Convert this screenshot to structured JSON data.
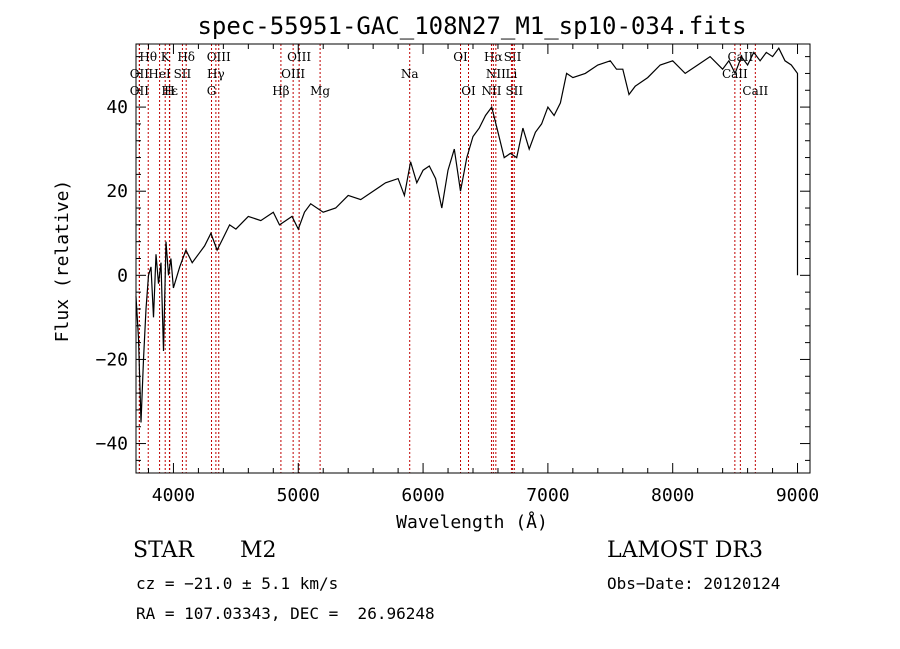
{
  "chart_data": {
    "type": "line",
    "title": "spec-55951-GAC_108N27_M1_sp10-034.fits",
    "xlabel": "Wavelength (Å)",
    "ylabel": "Flux (relative)",
    "xlim": [
      3700,
      9100
    ],
    "ylim": [
      -47,
      55
    ],
    "x_ticks": [
      4000,
      5000,
      6000,
      7000,
      8000,
      9000
    ],
    "y_ticks": [
      -40,
      -20,
      0,
      20,
      40
    ],
    "series": [
      {
        "name": "flux",
        "x": [
          3700,
          3720,
          3740,
          3760,
          3780,
          3800,
          3820,
          3840,
          3860,
          3880,
          3900,
          3920,
          3940,
          3960,
          3980,
          4000,
          4050,
          4100,
          4150,
          4200,
          4250,
          4300,
          4350,
          4400,
          4450,
          4500,
          4600,
          4700,
          4800,
          4850,
          4900,
          4950,
          5000,
          5050,
          5100,
          5200,
          5300,
          5400,
          5500,
          5600,
          5700,
          5800,
          5850,
          5900,
          5950,
          6000,
          6050,
          6100,
          6150,
          6200,
          6250,
          6300,
          6350,
          6400,
          6450,
          6500,
          6550,
          6600,
          6650,
          6700,
          6750,
          6800,
          6850,
          6900,
          6950,
          7000,
          7050,
          7100,
          7150,
          7200,
          7300,
          7400,
          7500,
          7550,
          7600,
          7650,
          7700,
          7800,
          7900,
          8000,
          8100,
          8200,
          8300,
          8400,
          8450,
          8500,
          8550,
          8600,
          8650,
          8700,
          8750,
          8800,
          8850,
          8900,
          8950,
          9000,
          9000
        ],
        "y": [
          -5,
          -15,
          -35,
          -20,
          -8,
          0,
          2,
          -10,
          5,
          -2,
          3,
          -18,
          8,
          0,
          4,
          -3,
          2,
          6,
          3,
          5,
          7,
          10,
          6,
          9,
          12,
          11,
          14,
          13,
          15,
          12,
          13,
          14,
          11,
          15,
          17,
          15,
          16,
          19,
          18,
          20,
          22,
          23,
          19,
          27,
          22,
          25,
          26,
          23,
          16,
          25,
          30,
          20,
          28,
          33,
          35,
          38,
          40,
          34,
          28,
          29,
          28,
          35,
          30,
          34,
          36,
          40,
          38,
          41,
          48,
          47,
          48,
          50,
          51,
          49,
          49,
          43,
          45,
          47,
          50,
          51,
          48,
          50,
          52,
          49,
          51,
          48,
          52,
          50,
          53,
          51,
          53,
          52,
          54,
          51,
          50,
          48,
          0
        ]
      }
    ],
    "line_markers": [
      {
        "name": "Hθ",
        "x": 3798,
        "row": 0
      },
      {
        "name": "K",
        "x": 3934,
        "row": 0
      },
      {
        "name": "Hδ",
        "x": 4102,
        "row": 0
      },
      {
        "name": "OIII",
        "x": 4363,
        "row": 0
      },
      {
        "name": "OIII",
        "x": 5007,
        "row": 0
      },
      {
        "name": "OI",
        "x": 6300,
        "row": 0
      },
      {
        "name": "Hα",
        "x": 6563,
        "row": 0
      },
      {
        "name": "SII",
        "x": 6717,
        "row": 0
      },
      {
        "name": "CaII",
        "x": 8542,
        "row": 0
      },
      {
        "name": "OII",
        "x": 3727,
        "row": 1
      },
      {
        "name": "HeI",
        "x": 3889,
        "row": 1
      },
      {
        "name": "SII",
        "x": 4072,
        "row": 1
      },
      {
        "name": "Hγ",
        "x": 4340,
        "row": 1
      },
      {
        "name": "OIII",
        "x": 4959,
        "row": 1
      },
      {
        "name": "Na",
        "x": 5893,
        "row": 1
      },
      {
        "name": "NII",
        "x": 6583,
        "row": 1
      },
      {
        "name": "Li",
        "x": 6708,
        "row": 1
      },
      {
        "name": "CaII",
        "x": 8498,
        "row": 1
      },
      {
        "name": "OII",
        "x": 3727,
        "row": 2
      },
      {
        "name": "Hε",
        "x": 3970,
        "row": 2
      },
      {
        "name": "H",
        "x": 3968,
        "row": 2
      },
      {
        "name": "G",
        "x": 4305,
        "row": 2
      },
      {
        "name": "Hβ",
        "x": 4861,
        "row": 2
      },
      {
        "name": "Mg",
        "x": 5175,
        "row": 2
      },
      {
        "name": "OI",
        "x": 6364,
        "row": 2
      },
      {
        "name": "NII",
        "x": 6548,
        "row": 2
      },
      {
        "name": "SII",
        "x": 6731,
        "row": 2
      },
      {
        "name": "CaII",
        "x": 8662,
        "row": 2
      }
    ]
  },
  "info": {
    "object_class": "STAR",
    "subclass": "M2",
    "survey": "LAMOST DR3",
    "cz": "cz = −21.0 ± 5.1 km/s",
    "obs_date": "Obs−Date: 20120124",
    "radec": "RA = 107.03343, DEC =  26.96248"
  }
}
